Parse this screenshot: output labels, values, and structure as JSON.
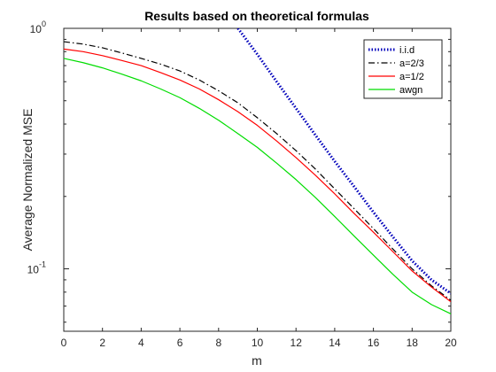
{
  "chart_data": {
    "type": "line",
    "title": "Results based on theoretical formulas",
    "xlabel": "m",
    "ylabel": "Average Normalized MSE",
    "xlim": [
      0,
      20
    ],
    "ylim": [
      0.055,
      1
    ],
    "yscale": "log",
    "x_ticks": [
      "0",
      "2",
      "4",
      "6",
      "8",
      "10",
      "12",
      "14",
      "16",
      "18",
      "20"
    ],
    "y_ticks": [
      {
        "base": "10",
        "exp": "0",
        "value": 1
      },
      {
        "base": "10",
        "exp": "-1",
        "value": 0.1
      }
    ],
    "grid": false,
    "legend_position": "top-right",
    "x": [
      0,
      1,
      2,
      3,
      4,
      5,
      6,
      7,
      8,
      9,
      10,
      11,
      12,
      13,
      14,
      15,
      16,
      17,
      18,
      19,
      20
    ],
    "series": [
      {
        "name": "i.i.d",
        "color": "#0000bb",
        "style": "dotted",
        "values": [
          null,
          null,
          null,
          null,
          null,
          null,
          null,
          null,
          null,
          1.0,
          0.78,
          0.6,
          0.465,
          0.36,
          0.28,
          0.22,
          0.172,
          0.136,
          0.108,
          0.09,
          0.079
        ]
      },
      {
        "name": "a=2/3",
        "color": "#000000",
        "style": "dashdot",
        "values": [
          0.88,
          0.86,
          0.83,
          0.79,
          0.75,
          0.71,
          0.665,
          0.61,
          0.55,
          0.49,
          0.425,
          0.365,
          0.31,
          0.26,
          0.215,
          0.178,
          0.147,
          0.121,
          0.1,
          0.085,
          0.074
        ]
      },
      {
        "name": "a=1/2",
        "color": "#ff0000",
        "style": "solid",
        "values": [
          0.82,
          0.8,
          0.77,
          0.735,
          0.7,
          0.655,
          0.61,
          0.56,
          0.505,
          0.45,
          0.395,
          0.34,
          0.29,
          0.245,
          0.205,
          0.17,
          0.142,
          0.118,
          0.098,
          0.084,
          0.073
        ]
      },
      {
        "name": "awgn",
        "color": "#00dd00",
        "style": "solid",
        "values": [
          0.75,
          0.72,
          0.685,
          0.645,
          0.605,
          0.56,
          0.515,
          0.465,
          0.415,
          0.365,
          0.32,
          0.275,
          0.235,
          0.198,
          0.165,
          0.137,
          0.114,
          0.095,
          0.08,
          0.071,
          0.065
        ]
      }
    ]
  }
}
